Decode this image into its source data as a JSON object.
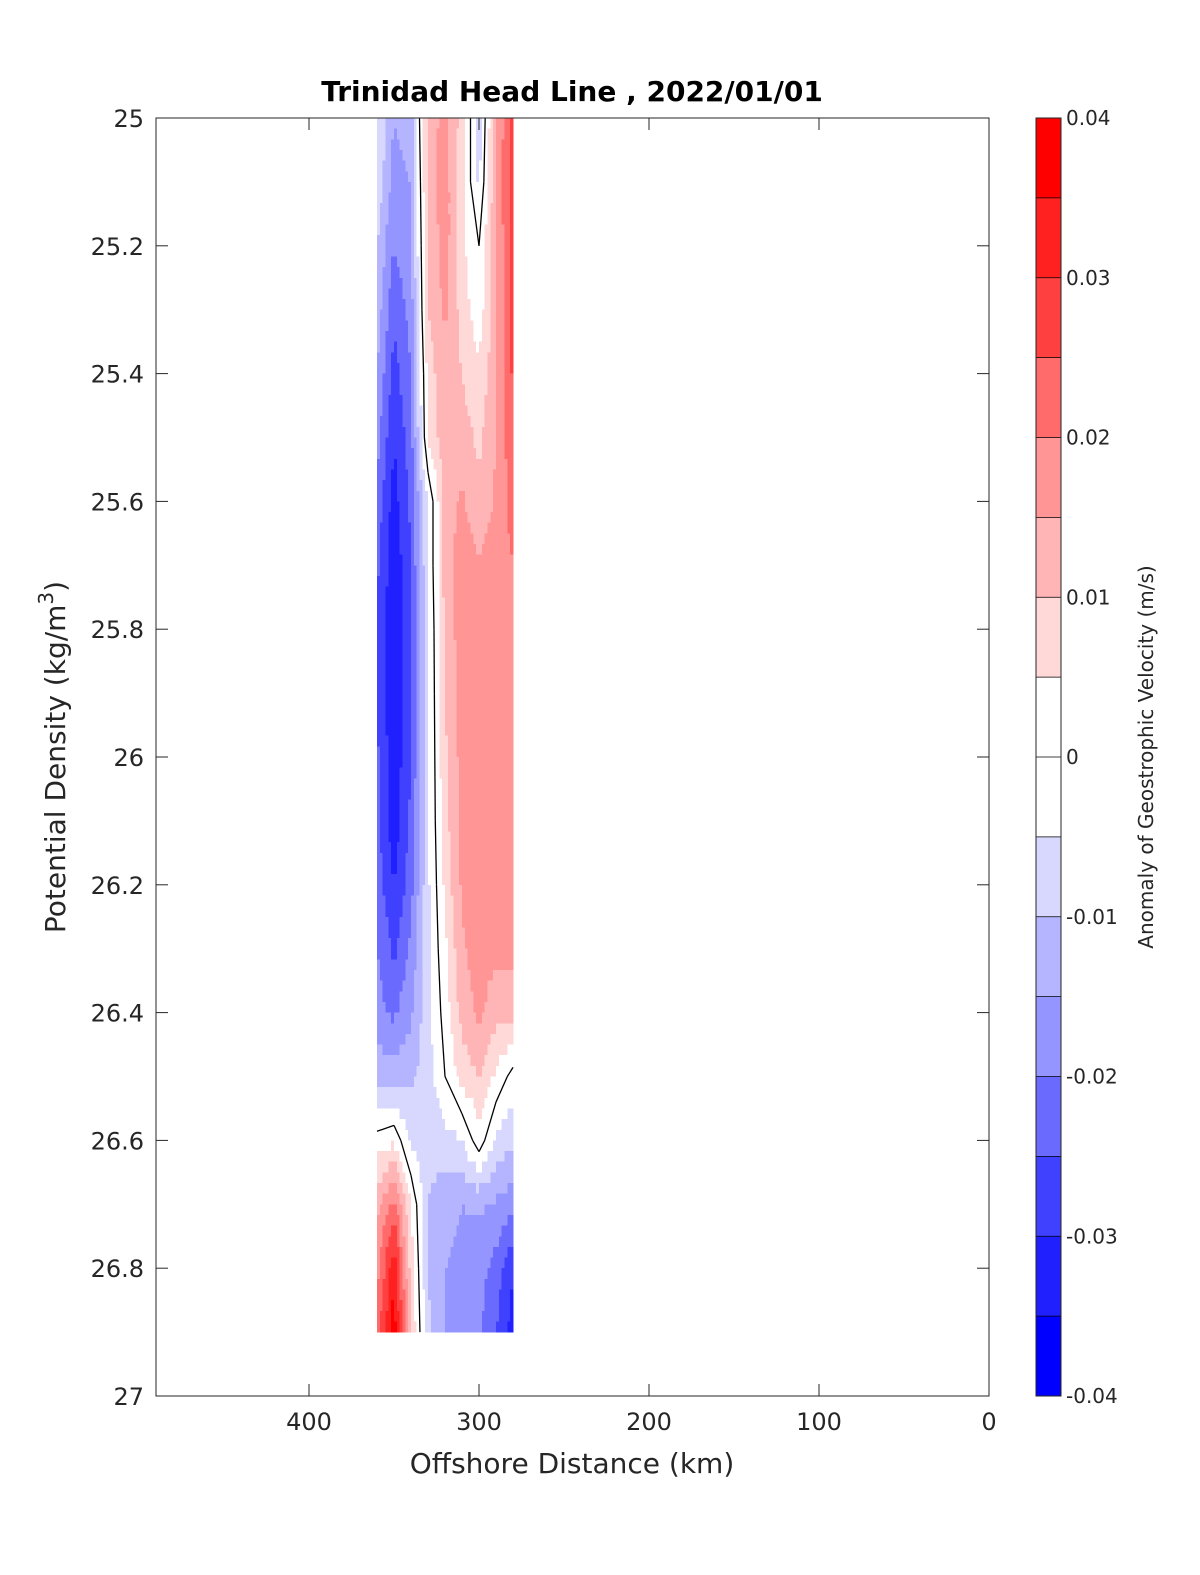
{
  "chart_data": {
    "type": "heatmap",
    "subtype": "filled-contour",
    "title": "Trinidad Head Line , 2022/01/01",
    "xlabel": "Offshore Distance (km)",
    "ylabel_main": "Potential Density (kg/m",
    "ylabel_sup": "3",
    "ylabel_close": ")",
    "colorbar_label": "Anomaly of Geostrophic Velocity (m/s)",
    "xlim": [
      490,
      0
    ],
    "ylim": [
      25,
      27
    ],
    "y_reversed": true,
    "x_ticks": [
      400,
      300,
      200,
      100,
      0
    ],
    "y_ticks": [
      25,
      25.2,
      25.4,
      25.6,
      25.8,
      26,
      26.2,
      26.4,
      26.6,
      26.8,
      27
    ],
    "y_tick_labels": [
      "25",
      "25.2",
      "25.4",
      "25.6",
      "25.8",
      "26",
      "26.2",
      "26.4",
      "26.6",
      "26.8",
      "27"
    ],
    "colorbar_limits": [
      -0.04,
      0.04
    ],
    "colorbar_levels": [
      -0.04,
      -0.035,
      -0.03,
      -0.025,
      -0.02,
      -0.015,
      -0.01,
      -0.005,
      0,
      0.005,
      0.01,
      0.015,
      0.02,
      0.025,
      0.03,
      0.035,
      0.04
    ],
    "colorbar_ticks": [
      0.04,
      0.03,
      0.02,
      0.01,
      0,
      -0.01,
      -0.02,
      -0.03,
      -0.04
    ],
    "colorbar_tick_labels": [
      "0.04",
      "0.03",
      "0.02",
      "0.01",
      "0",
      "-0.01",
      "-0.02",
      "-0.03",
      "-0.04"
    ],
    "colormap": [
      "#0000ff",
      "#2020ff",
      "#4040ff",
      "#6a6aff",
      "#9595ff",
      "#b5b5ff",
      "#d8d8ff",
      "#ffffff",
      "#ffffff",
      "#ffd8d8",
      "#ffb5b5",
      "#ff9595",
      "#ff6a6a",
      "#ff4040",
      "#ff2020",
      "#ff0000"
    ],
    "x": [
      360,
      350,
      340,
      330,
      320,
      310,
      300,
      290,
      280
    ],
    "y": [
      25,
      25.1,
      25.2,
      25.3,
      25.4,
      25.5,
      25.6,
      25.7,
      25.8,
      25.9,
      26,
      26.1,
      26.2,
      26.3,
      26.4,
      26.5,
      26.6,
      26.7,
      26.8,
      26.9
    ],
    "z": [
      [
        -0.005,
        -0.015,
        -0.012,
        0.012,
        0.017,
        0.008,
        -0.008,
        0.014,
        0.028
      ],
      [
        -0.005,
        -0.018,
        -0.015,
        0.012,
        0.018,
        0.006,
        -0.006,
        0.015,
        0.028
      ],
      [
        -0.01,
        -0.02,
        -0.015,
        0.01,
        0.018,
        0.006,
        0.0,
        0.014,
        0.028
      ],
      [
        -0.012,
        -0.024,
        -0.018,
        0.01,
        0.016,
        0.008,
        0.002,
        0.014,
        0.028
      ],
      [
        -0.015,
        -0.027,
        -0.02,
        0.007,
        0.014,
        0.01,
        0.006,
        0.014,
        0.026
      ],
      [
        -0.018,
        -0.03,
        -0.022,
        0.006,
        0.013,
        0.012,
        0.009,
        0.015,
        0.024
      ],
      [
        -0.022,
        -0.032,
        -0.024,
        -0.005,
        0.012,
        0.016,
        0.011,
        0.016,
        0.022
      ],
      [
        -0.024,
        -0.034,
        -0.025,
        -0.005,
        0.012,
        0.018,
        0.016,
        0.018,
        0.02
      ],
      [
        -0.025,
        -0.034,
        -0.026,
        -0.006,
        0.011,
        0.018,
        0.018,
        0.019,
        0.02
      ],
      [
        -0.025,
        -0.034,
        -0.026,
        -0.006,
        0.01,
        0.018,
        0.019,
        0.019,
        0.02
      ],
      [
        -0.024,
        -0.034,
        -0.025,
        -0.006,
        0.009,
        0.017,
        0.019,
        0.019,
        0.019
      ],
      [
        -0.024,
        -0.033,
        -0.024,
        -0.006,
        0.008,
        0.017,
        0.02,
        0.018,
        0.018
      ],
      [
        -0.022,
        -0.03,
        -0.022,
        -0.006,
        0.006,
        0.016,
        0.018,
        0.017,
        0.017
      ],
      [
        -0.02,
        -0.026,
        -0.019,
        -0.006,
        0.004,
        0.014,
        0.018,
        0.016,
        0.016
      ],
      [
        -0.018,
        -0.021,
        -0.016,
        -0.006,
        0.002,
        0.012,
        0.016,
        0.012,
        0.012
      ],
      [
        -0.012,
        -0.013,
        -0.011,
        -0.008,
        0.0,
        0.007,
        0.01,
        0.004,
        -0.002
      ],
      [
        0.002,
        0.004,
        -0.006,
        -0.009,
        -0.007,
        -0.005,
        0.003,
        -0.006,
        -0.009
      ],
      [
        0.013,
        0.022,
        0.005,
        -0.01,
        -0.013,
        -0.015,
        -0.014,
        -0.016,
        -0.018
      ],
      [
        0.018,
        0.034,
        0.008,
        -0.01,
        -0.015,
        -0.017,
        -0.018,
        -0.022,
        -0.03
      ],
      [
        0.022,
        0.038,
        0.01,
        -0.009,
        -0.015,
        -0.017,
        -0.019,
        -0.025,
        -0.032
      ]
    ]
  }
}
